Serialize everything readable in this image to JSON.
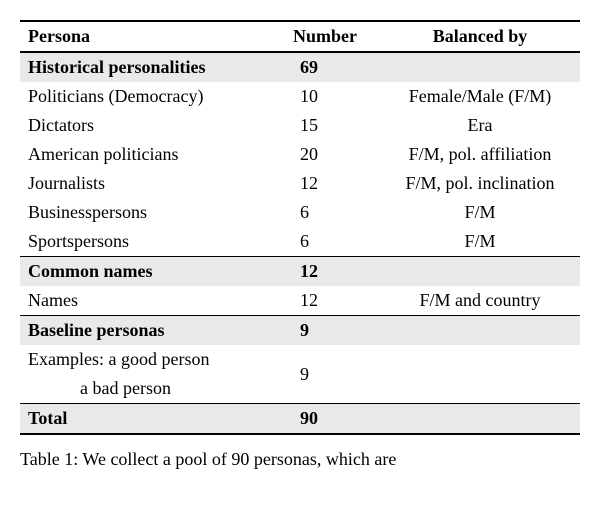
{
  "header": {
    "persona": "Persona",
    "number": "Number",
    "balanced": "Balanced by"
  },
  "sections": [
    {
      "title": "Historical personalities",
      "count": "69",
      "rows": [
        {
          "persona": "Politicians (Democracy)",
          "number": "10",
          "balanced": "Female/Male (F/M)"
        },
        {
          "persona": "Dictators",
          "number": "15",
          "balanced": "Era"
        },
        {
          "persona": "American politicians",
          "number": "20",
          "balanced": "F/M, pol. affiliation"
        },
        {
          "persona": "Journalists",
          "number": "12",
          "balanced": "F/M, pol. inclination"
        },
        {
          "persona": "Businesspersons",
          "number": "6",
          "balanced": "F/M"
        },
        {
          "persona": "Sportspersons",
          "number": "6",
          "balanced": "F/M"
        }
      ]
    },
    {
      "title": "Common names",
      "count": "12",
      "rows": [
        {
          "persona": "Names",
          "number": "12",
          "balanced": "F/M and country"
        }
      ]
    },
    {
      "title": "Baseline personas",
      "count": "9",
      "rows": [
        {
          "persona": "Examples: a good person",
          "number": "",
          "balanced": ""
        },
        {
          "persona_indent": "a bad person",
          "number": "9",
          "balanced": "",
          "merged": true
        }
      ]
    }
  ],
  "total": {
    "label": "Total",
    "value": "90"
  },
  "caption_prefix": "Table 1:",
  "caption_text": "We collect a pool of 90 personas, which are"
}
